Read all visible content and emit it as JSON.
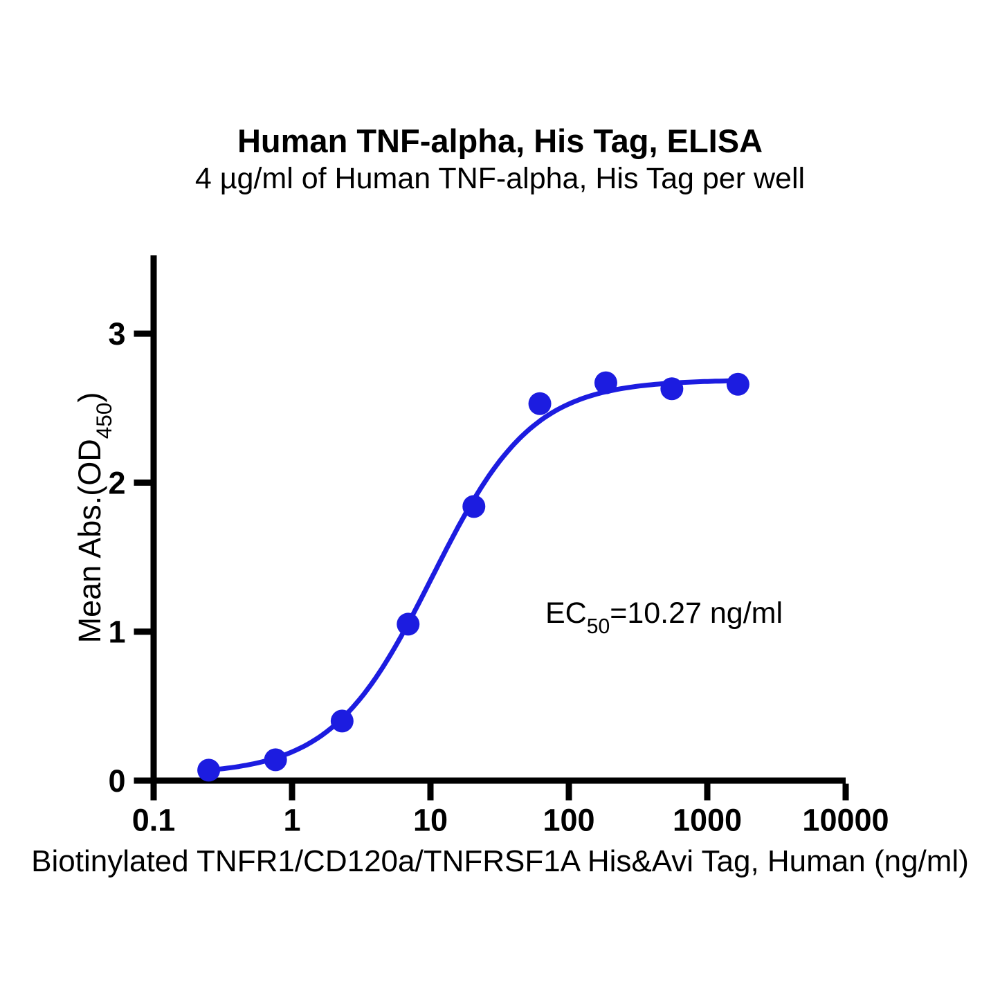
{
  "title": "Human TNF-alpha, His Tag, ELISA",
  "subtitle": "4 µg/ml of Human TNF-alpha, His Tag per well",
  "annotation": {
    "prefix": "EC",
    "sub": "50",
    "rest": "=10.27 ng/ml"
  },
  "chart_data": {
    "type": "scatter",
    "title": "Human TNF-alpha, His Tag, ELISA",
    "subtitle": "4 µg/ml of Human TNF-alpha, His Tag per well",
    "x": [
      0.25,
      0.76,
      2.3,
      6.9,
      20.6,
      61.7,
      185,
      555,
      1667
    ],
    "y": [
      0.07,
      0.14,
      0.4,
      1.05,
      1.84,
      2.53,
      2.67,
      2.63,
      2.66
    ],
    "x_scale": "log",
    "xlim": [
      0.1,
      10000
    ],
    "ylim": [
      0,
      3.5
    ],
    "x_ticks": [
      0.1,
      1,
      10,
      100,
      1000,
      10000
    ],
    "x_tick_labels": [
      "0.1",
      "1",
      "10",
      "100",
      "1000",
      "10000"
    ],
    "y_ticks": [
      0,
      1,
      2,
      3
    ],
    "y_tick_labels": [
      "0",
      "1",
      "2",
      "3"
    ],
    "xlabel": "Biotinylated TNFR1/CD120a/TNFRSF1A His&Avi Tag, Human (ng/ml)",
    "ylabel_prefix": "Mean Abs.(OD",
    "ylabel_sub": "450",
    "ylabel_suffix": ")",
    "grid": "off",
    "legend": "none",
    "marker_color": "#1c1ce0",
    "line_color": "#1c1ce0",
    "axis_color": "#000000",
    "annotation_text": "EC50=10.27 ng/ml",
    "curve_fit": {
      "model": "4PL",
      "ec50_ng_ml": 10.27,
      "hill": 1.2,
      "bottom": 0.04,
      "top": 2.69
    }
  }
}
